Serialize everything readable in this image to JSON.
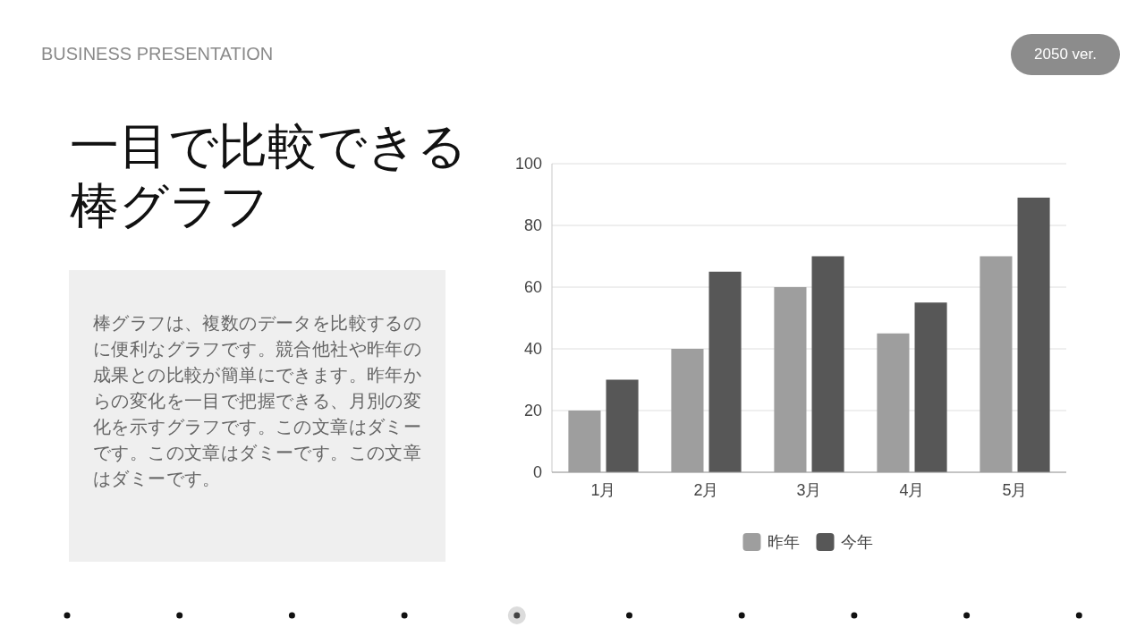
{
  "chart_data": {
    "type": "bar",
    "title": "一目で比較できる棒グラフ",
    "annotations": [
      "BUSINESS PRESENTATION",
      "2050 ver.",
      "棒グラフは、複数のデータを比較するのに便利なグラフです。競合他社や昨年の成果との比較が簡単にできます。昨年からの変化を一目で把握できる、月別の変化を示すグラフです。この文章はダミーです。この文章はダミーです。この文章はダミーです。"
    ],
    "categories": [
      "1月",
      "2月",
      "3月",
      "4月",
      "5月"
    ],
    "series": [
      {
        "name": "昨年",
        "color": "#9e9e9e",
        "values": [
          20,
          40,
          60,
          45,
          70
        ]
      },
      {
        "name": "今年",
        "color": "#575757",
        "values": [
          30,
          65,
          70,
          55,
          89
        ]
      }
    ],
    "ylim": [
      0,
      100
    ],
    "yticks": [
      0,
      20,
      40,
      60,
      80,
      100
    ],
    "grid": "y",
    "legend": "bottom"
  }
}
